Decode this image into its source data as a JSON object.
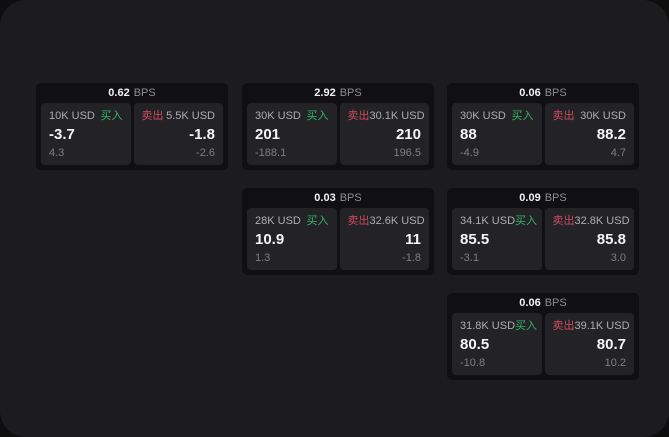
{
  "app": {
    "background": "#1c1c1e",
    "frame_background": "#0e0e0e"
  },
  "labels": {
    "bps_unit": "BPS",
    "buy": "买入",
    "sell": "卖出"
  },
  "colors": {
    "buy_green": "#33b469",
    "sell_red": "#ce4a5e",
    "value_white": "#f5f5f7",
    "label_gray": "#aeaeb2",
    "sub_gray": "#7e7e84",
    "card_base": "#101012",
    "panel_bg": "#232326"
  },
  "cards": [
    {
      "bps": "0.62",
      "buy": {
        "amount": "10K USD",
        "value": "-3.7",
        "delta": "4.3"
      },
      "sell": {
        "amount": "5.5K USD",
        "value": "-1.8",
        "delta": "-2.6"
      }
    },
    {
      "bps": "2.92",
      "buy": {
        "amount": "30K USD",
        "value": "201",
        "delta": "-188.1"
      },
      "sell": {
        "amount": "30.1K USD",
        "value": "210",
        "delta": "196.5"
      }
    },
    {
      "bps": "0.06",
      "buy": {
        "amount": "30K USD",
        "value": "88",
        "delta": "-4.9"
      },
      "sell": {
        "amount": "30K USD",
        "value": "88.2",
        "delta": "4.7"
      }
    },
    {
      "bps": "0.03",
      "buy": {
        "amount": "28K USD",
        "value": "10.9",
        "delta": "1.3"
      },
      "sell": {
        "amount": "32.6K USD",
        "value": "11",
        "delta": "-1.8"
      }
    },
    {
      "bps": "0.09",
      "buy": {
        "amount": "34.1K USD",
        "value": "85.5",
        "delta": "-3.1"
      },
      "sell": {
        "amount": "32.8K USD",
        "value": "85.8",
        "delta": "3.0"
      }
    },
    {
      "bps": "0.06",
      "buy": {
        "amount": "31.8K USD",
        "value": "80.5",
        "delta": "-10.8"
      },
      "sell": {
        "amount": "39.1K USD",
        "value": "80.7",
        "delta": "10.2"
      }
    }
  ]
}
